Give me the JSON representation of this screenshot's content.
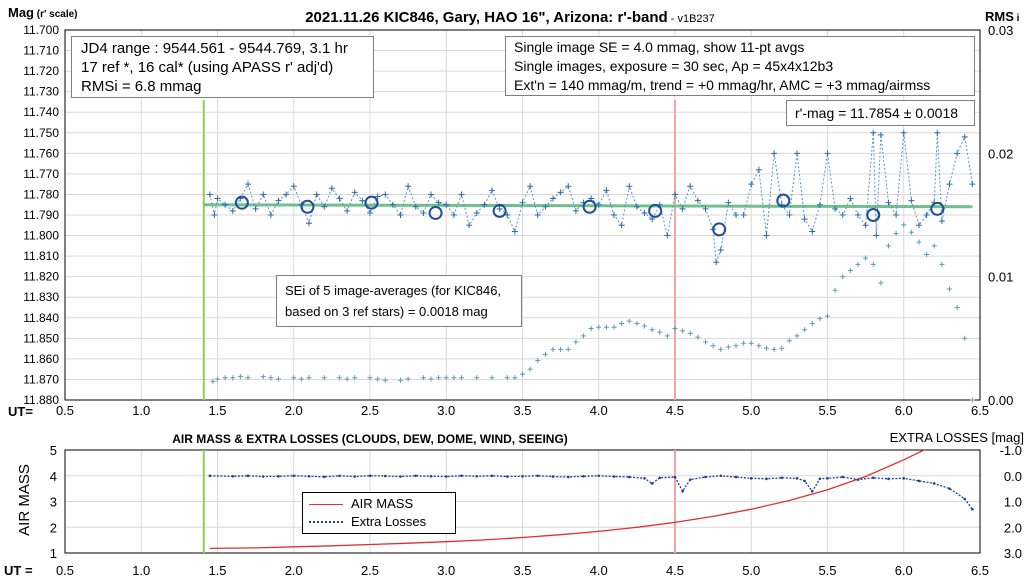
{
  "chart_data": [
    {
      "type": "scatter",
      "title": "2021.11.26 KIC846, Gary, HAO 16\", Arizona: r'-band",
      "version": "- v1B237",
      "ylabel_main": "Mag",
      "ylabel_sub": "(r' scale)",
      "y2label": "RMS",
      "y2label_sub": "i",
      "xlabel": "UT=",
      "xlim": [
        0.5,
        6.5
      ],
      "ylim": [
        11.88,
        11.7
      ],
      "y2lim": [
        0,
        0.03
      ],
      "x_ticks": [
        "0.5",
        "1.0",
        "1.5",
        "2.0",
        "2.5",
        "3.0",
        "3.5",
        "4.0",
        "4.5",
        "5.0",
        "5.5",
        "6.0",
        "6.5"
      ],
      "y_ticks": [
        "11.700",
        "11.710",
        "11.720",
        "11.730",
        "11.740",
        "11.750",
        "11.760",
        "11.770",
        "11.780",
        "11.790",
        "11.800",
        "11.810",
        "11.820",
        "11.830",
        "11.840",
        "11.850",
        "11.860",
        "11.870",
        "11.880"
      ],
      "y2_ticks": [
        "0.03",
        "0.02",
        "0.01",
        "0.00"
      ],
      "grid": true,
      "vertical_lines": [
        {
          "x": 1.41,
          "color": "#92d050"
        },
        {
          "x": 4.5,
          "color": "#f4a6a6"
        }
      ],
      "trend_line": {
        "x": [
          1.41,
          6.45
        ],
        "y": [
          11.785,
          11.786
        ],
        "color": "#70c08c"
      },
      "series": [
        {
          "marker": "plus",
          "color": "#2e6ea8",
          "x": [
            1.45,
            1.48,
            1.5,
            1.55,
            1.6,
            1.65,
            1.7,
            1.75,
            1.8,
            1.85,
            1.9,
            1.95,
            2.0,
            2.05,
            2.1,
            2.15,
            2.2,
            2.25,
            2.3,
            2.35,
            2.4,
            2.45,
            2.5,
            2.55,
            2.6,
            2.65,
            2.7,
            2.75,
            2.8,
            2.85,
            2.9,
            2.95,
            3.0,
            3.05,
            3.1,
            3.15,
            3.2,
            3.25,
            3.3,
            3.35,
            3.4,
            3.45,
            3.5,
            3.55,
            3.6,
            3.65,
            3.7,
            3.75,
            3.8,
            3.85,
            3.9,
            3.95,
            4.0,
            4.05,
            4.1,
            4.15,
            4.2,
            4.25,
            4.3,
            4.35,
            4.4,
            4.45,
            4.5,
            4.55,
            4.6,
            4.65,
            4.7,
            4.75,
            4.77,
            4.8,
            4.85,
            4.9,
            4.95,
            5.0,
            5.05,
            5.1,
            5.15,
            5.2,
            5.25,
            5.3,
            5.35,
            5.4,
            5.45,
            5.5,
            5.55,
            5.6,
            5.65,
            5.7,
            5.75,
            5.8,
            5.82,
            5.85,
            5.9,
            5.95,
            6.0,
            6.05,
            6.1,
            6.15,
            6.2,
            6.22,
            6.25,
            6.3,
            6.35,
            6.4,
            6.45
          ],
          "y": [
            11.78,
            11.79,
            11.782,
            11.785,
            11.788,
            11.782,
            11.775,
            11.787,
            11.78,
            11.79,
            11.783,
            11.78,
            11.776,
            11.785,
            11.794,
            11.78,
            11.786,
            11.777,
            11.782,
            11.788,
            11.779,
            11.783,
            11.789,
            11.781,
            11.78,
            11.785,
            11.79,
            11.776,
            11.786,
            11.789,
            11.78,
            11.784,
            11.785,
            11.79,
            11.78,
            11.795,
            11.789,
            11.785,
            11.778,
            11.787,
            11.79,
            11.798,
            11.784,
            11.776,
            11.79,
            11.786,
            11.782,
            11.779,
            11.776,
            11.788,
            11.784,
            11.782,
            11.785,
            11.778,
            11.79,
            11.795,
            11.776,
            11.786,
            11.789,
            11.792,
            11.785,
            11.8,
            11.78,
            11.787,
            11.776,
            11.783,
            11.787,
            11.797,
            11.813,
            11.807,
            11.784,
            11.79,
            11.79,
            11.775,
            11.768,
            11.8,
            11.76,
            11.785,
            11.79,
            11.76,
            11.792,
            11.798,
            11.785,
            11.76,
            11.787,
            11.79,
            11.782,
            11.79,
            11.795,
            11.75,
            11.8,
            11.751,
            11.784,
            11.79,
            11.75,
            11.783,
            11.795,
            11.79,
            11.784,
            11.75,
            11.793,
            11.775,
            11.76,
            11.752,
            11.775
          ],
          "name": ""
        },
        {
          "marker": "circle",
          "color": "#1f4e96",
          "x": [
            1.66,
            2.09,
            2.51,
            2.93,
            3.35,
            3.94,
            4.37,
            4.79,
            5.21,
            5.8,
            6.22
          ],
          "y": [
            11.784,
            11.786,
            11.784,
            11.789,
            11.788,
            11.786,
            11.788,
            11.797,
            11.783,
            11.79,
            11.787
          ]
        },
        {
          "marker": "plus",
          "color": "#5b9bb8",
          "axis": "y2",
          "x": [
            1.47,
            1.5,
            1.55,
            1.6,
            1.65,
            1.7,
            1.8,
            1.85,
            1.9,
            2.0,
            2.05,
            2.1,
            2.2,
            2.3,
            2.35,
            2.4,
            2.5,
            2.55,
            2.6,
            2.7,
            2.75,
            2.85,
            2.9,
            2.95,
            3.0,
            3.05,
            3.1,
            3.2,
            3.3,
            3.4,
            3.45,
            3.5,
            3.55,
            3.6,
            3.65,
            3.7,
            3.75,
            3.8,
            3.85,
            3.9,
            3.95,
            4.0,
            4.05,
            4.1,
            4.15,
            4.2,
            4.25,
            4.3,
            4.35,
            4.4,
            4.45,
            4.5,
            4.55,
            4.6,
            4.65,
            4.7,
            4.75,
            4.8,
            4.85,
            4.9,
            4.95,
            5.0,
            5.05,
            5.1,
            5.15,
            5.2,
            5.25,
            5.3,
            5.35,
            5.4,
            5.45,
            5.5,
            5.55,
            5.6,
            5.65,
            5.7,
            5.75,
            5.8,
            5.85,
            5.9,
            5.95,
            6.0,
            6.05,
            6.1,
            6.15,
            6.2,
            6.25,
            6.3,
            6.35,
            6.4,
            6.45
          ],
          "y": [
            0.0015,
            0.0017,
            0.0018,
            0.0018,
            0.0019,
            0.0018,
            0.0019,
            0.0018,
            0.0017,
            0.0018,
            0.0017,
            0.0018,
            0.0018,
            0.0018,
            0.0017,
            0.0018,
            0.0018,
            0.0017,
            0.0016,
            0.0016,
            0.0017,
            0.0018,
            0.0017,
            0.0018,
            0.0018,
            0.0018,
            0.0018,
            0.0018,
            0.0018,
            0.0018,
            0.0018,
            0.0021,
            0.0025,
            0.0032,
            0.0037,
            0.0041,
            0.0041,
            0.0041,
            0.0047,
            0.0052,
            0.0058,
            0.0059,
            0.0059,
            0.0059,
            0.0062,
            0.0064,
            0.0062,
            0.006,
            0.0057,
            0.0055,
            0.0052,
            0.0058,
            0.0056,
            0.0054,
            0.0051,
            0.0047,
            0.0044,
            0.0041,
            0.0043,
            0.0044,
            0.0046,
            0.0046,
            0.0044,
            0.0042,
            0.0041,
            0.0042,
            0.0048,
            0.0052,
            0.0057,
            0.0062,
            0.0066,
            0.0068,
            0.0089,
            0.01,
            0.0105,
            0.011,
            0.0115,
            0.011,
            0.0095,
            0.0125,
            0.0135,
            0.0142,
            0.0136,
            0.0128,
            0.0118,
            0.0125,
            0.011,
            0.009,
            0.0075,
            0.005,
            0.0
          ]
        }
      ],
      "annotations": [
        {
          "lines": [
            "JD4 range : 9544.561 - 9544.769,  3.1  hr",
            "17 ref *, 16 cal* (using APASS r' adj'd)",
            "RMSi = 6.8 mmag"
          ]
        },
        {
          "lines": [
            "Single image SE = 4.0 mmag, show  11-pt avgs",
            "Single images, exposure = 30 sec, Ap = 45x4x12b3",
            "Ext'n = 140 mmag/m, trend = +0  mmag/hr, AMC = +3 mmag/airmss"
          ]
        },
        {
          "lines": [
            "r'-mag = 11.7854 ± 0.0018"
          ]
        },
        {
          "lines": [
            "SEi of 5 image-averages (for KIC846,",
            "based on 3 ref stars) = 0.0018 mag"
          ]
        }
      ]
    },
    {
      "type": "line",
      "title": "AIR MASS & EXTRA LOSSES (CLOUDS, DEW, DOME, WIND, SEEING)",
      "ylabel": "AIR MASS",
      "y2label": "EXTRA LOSSES [mag]",
      "xlabel": "UT =",
      "xlim": [
        0.5,
        6.5
      ],
      "ylim": [
        1,
        5
      ],
      "y2lim": [
        3.0,
        -1.0
      ],
      "x_ticks": [
        "0.5",
        "1.0",
        "1.5",
        "2.0",
        "2.5",
        "3.0",
        "3.5",
        "4.0",
        "4.5",
        "5.0",
        "5.5",
        "6.0",
        "6.5"
      ],
      "y_ticks": [
        "5",
        "4",
        "3",
        "2",
        "1"
      ],
      "y2_ticks": [
        "-1.0",
        "0.0",
        "1.0",
        "2.0",
        "3.0"
      ],
      "grid": true,
      "vertical_lines": [
        {
          "x": 1.41,
          "color": "#92d050"
        },
        {
          "x": 4.5,
          "color": "#f4a6a6"
        }
      ],
      "series": [
        {
          "name": "AIR MASS",
          "color": "#e03030",
          "x": [
            1.45,
            1.75,
            2.0,
            2.25,
            2.5,
            2.75,
            3.0,
            3.25,
            3.5,
            3.75,
            4.0,
            4.25,
            4.5,
            4.75,
            5.0,
            5.25,
            5.5,
            5.75,
            6.0,
            6.15
          ],
          "y": [
            1.18,
            1.2,
            1.24,
            1.28,
            1.33,
            1.38,
            1.44,
            1.51,
            1.6,
            1.71,
            1.84,
            2.0,
            2.19,
            2.42,
            2.7,
            3.04,
            3.46,
            3.97,
            4.62,
            5.05
          ]
        },
        {
          "name": "Extra Losses",
          "color": "#1f3f9f",
          "axis": "y2",
          "x": [
            1.45,
            1.6,
            1.7,
            1.8,
            1.9,
            2.0,
            2.1,
            2.2,
            2.3,
            2.4,
            2.5,
            2.6,
            2.7,
            2.8,
            2.9,
            3.0,
            3.1,
            3.2,
            3.3,
            3.4,
            3.5,
            3.6,
            3.7,
            3.8,
            3.9,
            4.0,
            4.1,
            4.2,
            4.3,
            4.35,
            4.4,
            4.5,
            4.55,
            4.6,
            4.7,
            4.8,
            4.9,
            5.0,
            5.1,
            5.2,
            5.3,
            5.35,
            5.4,
            5.45,
            5.5,
            5.6,
            5.7,
            5.8,
            5.9,
            6.0,
            6.1,
            6.2,
            6.3,
            6.4,
            6.45
          ],
          "y": [
            0.0,
            0.02,
            0.0,
            0.03,
            0.02,
            0.0,
            0.02,
            0.04,
            0.0,
            0.03,
            0.0,
            0.01,
            0.03,
            0.0,
            0.02,
            0.03,
            0.0,
            0.02,
            0.0,
            0.03,
            0.02,
            0.0,
            0.03,
            0.05,
            0.02,
            0.0,
            0.03,
            0.05,
            0.1,
            0.3,
            0.08,
            0.05,
            0.6,
            0.15,
            0.05,
            0.0,
            0.05,
            0.1,
            0.12,
            0.08,
            0.1,
            0.2,
            0.6,
            0.12,
            0.1,
            0.05,
            0.15,
            0.08,
            0.12,
            0.1,
            0.2,
            0.3,
            0.5,
            0.9,
            1.3
          ]
        }
      ]
    }
  ]
}
